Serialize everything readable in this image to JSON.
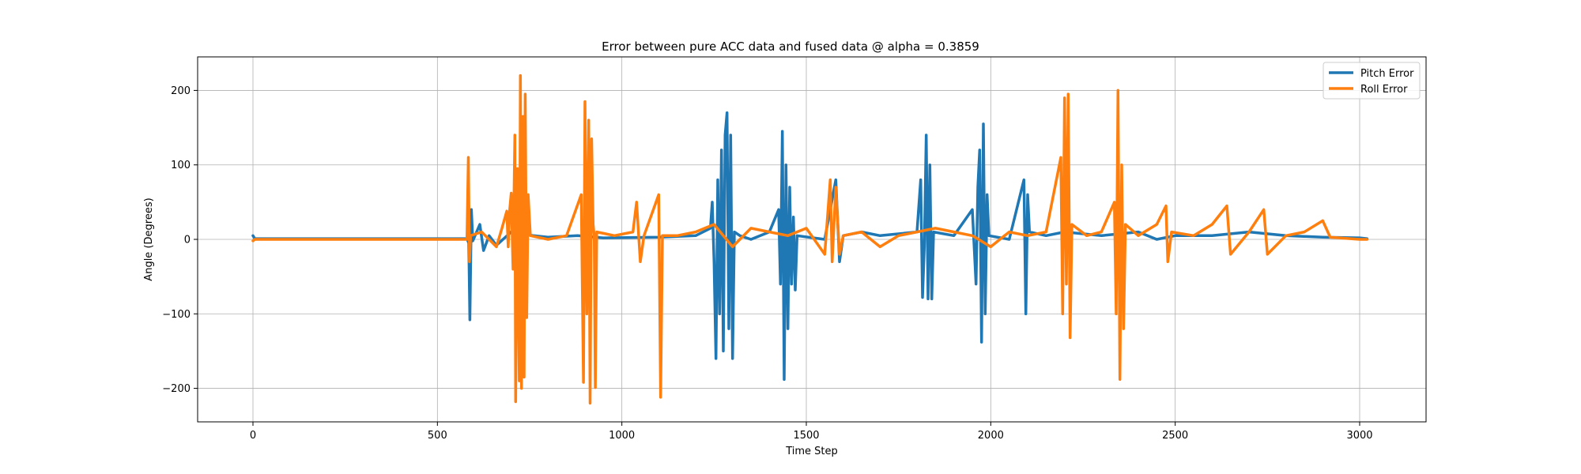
{
  "chart_data": {
    "type": "line",
    "title": "Error between pure ACC data and fused data @ alpha = 0.3859",
    "xlabel": "Time Step",
    "ylabel": "Angle (Degrees)",
    "xlim": [
      -150,
      3180
    ],
    "ylim": [
      -245,
      245
    ],
    "xticks": [
      0,
      500,
      1000,
      1500,
      2000,
      2500,
      3000
    ],
    "yticks": [
      -200,
      -100,
      0,
      100,
      200
    ],
    "ytick_labels": [
      "−200",
      "−100",
      "0",
      "100",
      "200"
    ],
    "grid": true,
    "legend_position": "top-right",
    "series": [
      {
        "name": "Pitch Error",
        "color": "#1f77b4",
        "points": [
          [
            0,
            5
          ],
          [
            5,
            1
          ],
          [
            580,
            1
          ],
          [
            585,
            -5
          ],
          [
            588,
            -108
          ],
          [
            592,
            40
          ],
          [
            596,
            -2
          ],
          [
            615,
            20
          ],
          [
            625,
            -15
          ],
          [
            640,
            5
          ],
          [
            660,
            -8
          ],
          [
            700,
            10
          ],
          [
            760,
            5
          ],
          [
            800,
            3
          ],
          [
            880,
            5
          ],
          [
            950,
            2
          ],
          [
            1100,
            3
          ],
          [
            1200,
            5
          ],
          [
            1240,
            15
          ],
          [
            1245,
            50
          ],
          [
            1250,
            -30
          ],
          [
            1255,
            -160
          ],
          [
            1260,
            80
          ],
          [
            1265,
            -100
          ],
          [
            1270,
            120
          ],
          [
            1275,
            -150
          ],
          [
            1280,
            140
          ],
          [
            1285,
            170
          ],
          [
            1290,
            -120
          ],
          [
            1295,
            140
          ],
          [
            1300,
            -160
          ],
          [
            1305,
            10
          ],
          [
            1320,
            5
          ],
          [
            1350,
            0
          ],
          [
            1400,
            10
          ],
          [
            1425,
            40
          ],
          [
            1430,
            -60
          ],
          [
            1435,
            145
          ],
          [
            1440,
            -188
          ],
          [
            1445,
            100
          ],
          [
            1450,
            -120
          ],
          [
            1455,
            70
          ],
          [
            1460,
            -60
          ],
          [
            1465,
            30
          ],
          [
            1470,
            -68
          ],
          [
            1475,
            5
          ],
          [
            1550,
            0
          ],
          [
            1580,
            80
          ],
          [
            1590,
            -30
          ],
          [
            1600,
            5
          ],
          [
            1650,
            10
          ],
          [
            1700,
            5
          ],
          [
            1800,
            10
          ],
          [
            1810,
            80
          ],
          [
            1815,
            -78
          ],
          [
            1820,
            -10
          ],
          [
            1825,
            140
          ],
          [
            1830,
            -80
          ],
          [
            1835,
            100
          ],
          [
            1840,
            -80
          ],
          [
            1845,
            10
          ],
          [
            1900,
            5
          ],
          [
            1950,
            40
          ],
          [
            1960,
            -60
          ],
          [
            1965,
            70
          ],
          [
            1970,
            120
          ],
          [
            1975,
            -138
          ],
          [
            1980,
            155
          ],
          [
            1985,
            -100
          ],
          [
            1990,
            60
          ],
          [
            1995,
            5
          ],
          [
            2050,
            0
          ],
          [
            2090,
            80
          ],
          [
            2095,
            -100
          ],
          [
            2100,
            60
          ],
          [
            2105,
            10
          ],
          [
            2150,
            5
          ],
          [
            2200,
            10
          ],
          [
            2300,
            5
          ],
          [
            2400,
            10
          ],
          [
            2450,
            0
          ],
          [
            2500,
            5
          ],
          [
            2600,
            5
          ],
          [
            2700,
            10
          ],
          [
            2800,
            5
          ],
          [
            2900,
            3
          ],
          [
            3000,
            2
          ],
          [
            3020,
            1
          ]
        ]
      },
      {
        "name": "Roll Error",
        "color": "#ff7f0e",
        "points": [
          [
            0,
            -2
          ],
          [
            5,
            0
          ],
          [
            580,
            0
          ],
          [
            584,
            110
          ],
          [
            587,
            -30
          ],
          [
            590,
            5
          ],
          [
            620,
            10
          ],
          [
            660,
            -10
          ],
          [
            675,
            15
          ],
          [
            688,
            38
          ],
          [
            692,
            -10
          ],
          [
            696,
            40
          ],
          [
            700,
            62
          ],
          [
            705,
            -40
          ],
          [
            710,
            140
          ],
          [
            712,
            -218
          ],
          [
            717,
            95
          ],
          [
            722,
            -190
          ],
          [
            725,
            220
          ],
          [
            728,
            -200
          ],
          [
            732,
            165
          ],
          [
            735,
            -185
          ],
          [
            738,
            195
          ],
          [
            742,
            -105
          ],
          [
            746,
            60
          ],
          [
            752,
            5
          ],
          [
            800,
            0
          ],
          [
            850,
            5
          ],
          [
            890,
            60
          ],
          [
            896,
            -192
          ],
          [
            900,
            185
          ],
          [
            905,
            -100
          ],
          [
            910,
            160
          ],
          [
            914,
            -220
          ],
          [
            918,
            135
          ],
          [
            922,
            20
          ],
          [
            925,
            5
          ],
          [
            928,
            -199
          ],
          [
            932,
            10
          ],
          [
            980,
            5
          ],
          [
            1030,
            10
          ],
          [
            1040,
            50
          ],
          [
            1050,
            -30
          ],
          [
            1060,
            5
          ],
          [
            1100,
            60
          ],
          [
            1105,
            -212
          ],
          [
            1110,
            5
          ],
          [
            1150,
            5
          ],
          [
            1200,
            10
          ],
          [
            1250,
            20
          ],
          [
            1300,
            -10
          ],
          [
            1350,
            15
          ],
          [
            1400,
            10
          ],
          [
            1450,
            5
          ],
          [
            1500,
            15
          ],
          [
            1550,
            -20
          ],
          [
            1565,
            80
          ],
          [
            1570,
            -30
          ],
          [
            1580,
            70
          ],
          [
            1590,
            -20
          ],
          [
            1600,
            5
          ],
          [
            1650,
            10
          ],
          [
            1700,
            -10
          ],
          [
            1750,
            5
          ],
          [
            1800,
            10
          ],
          [
            1850,
            15
          ],
          [
            1900,
            10
          ],
          [
            1950,
            5
          ],
          [
            2000,
            -10
          ],
          [
            2050,
            10
          ],
          [
            2100,
            5
          ],
          [
            2150,
            10
          ],
          [
            2190,
            110
          ],
          [
            2195,
            -100
          ],
          [
            2200,
            190
          ],
          [
            2205,
            -60
          ],
          [
            2210,
            195
          ],
          [
            2215,
            -132
          ],
          [
            2220,
            20
          ],
          [
            2260,
            5
          ],
          [
            2300,
            10
          ],
          [
            2335,
            50
          ],
          [
            2340,
            -100
          ],
          [
            2345,
            200
          ],
          [
            2350,
            -188
          ],
          [
            2355,
            100
          ],
          [
            2360,
            -120
          ],
          [
            2365,
            20
          ],
          [
            2400,
            5
          ],
          [
            2450,
            20
          ],
          [
            2475,
            45
          ],
          [
            2480,
            -30
          ],
          [
            2490,
            10
          ],
          [
            2550,
            5
          ],
          [
            2600,
            20
          ],
          [
            2640,
            45
          ],
          [
            2650,
            -20
          ],
          [
            2700,
            10
          ],
          [
            2740,
            40
          ],
          [
            2750,
            -20
          ],
          [
            2800,
            5
          ],
          [
            2850,
            10
          ],
          [
            2900,
            25
          ],
          [
            2920,
            3
          ],
          [
            3000,
            0
          ],
          [
            3020,
            0
          ]
        ]
      }
    ]
  }
}
